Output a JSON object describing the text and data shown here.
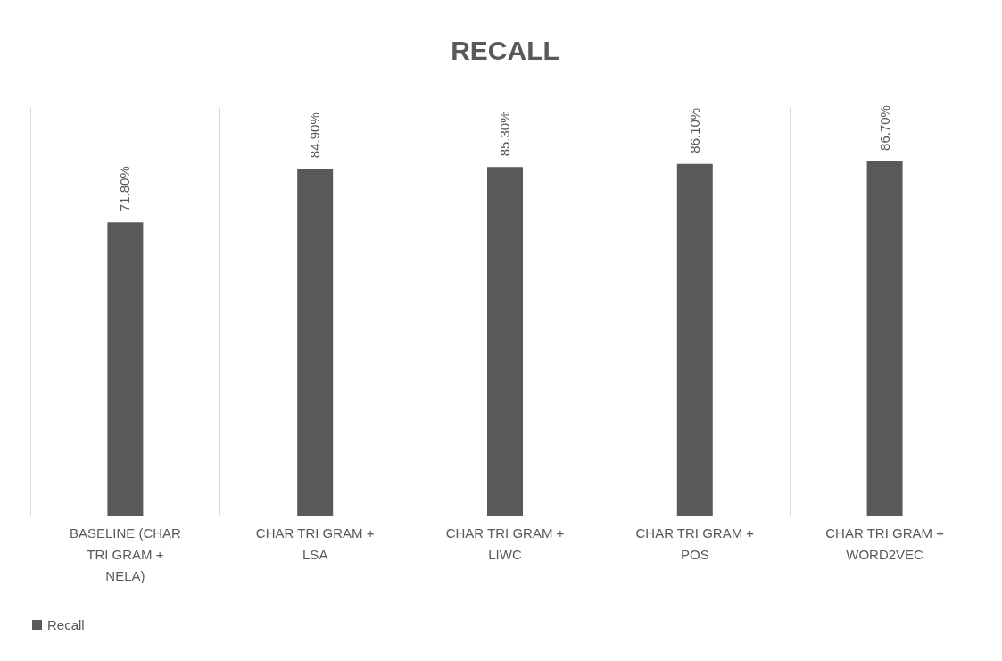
{
  "chart_data": {
    "type": "bar",
    "title": "RECALL",
    "categories": [
      "BASELINE (CHAR TRI GRAM + NELA)",
      "CHAR TRI GRAM + LSA",
      "CHAR TRI GRAM + LIWC",
      "CHAR TRI GRAM + POS",
      "CHAR TRI GRAM + WORD2VEC"
    ],
    "series": [
      {
        "name": "Recall",
        "color": "#595959",
        "values": [
          71.8,
          84.9,
          85.3,
          86.1,
          86.7
        ],
        "value_labels": [
          "71.80%",
          "84.90%",
          "85.30%",
          "86.10%",
          "86.70%"
        ]
      }
    ],
    "ylim": [
      0,
      100
    ],
    "grid": "x",
    "legend": "bottom"
  }
}
